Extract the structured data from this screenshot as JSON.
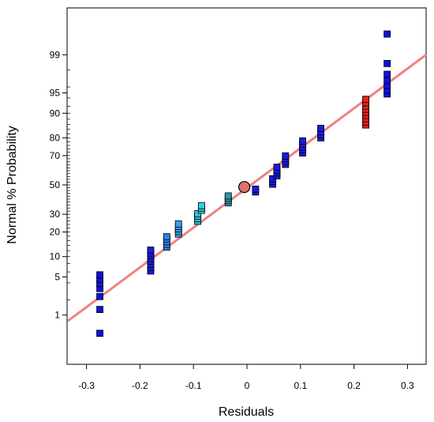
{
  "chart_data": {
    "type": "scatter",
    "xlabel": "Residuals",
    "ylabel": "Normal % Probability",
    "xlim": [
      -0.335,
      0.335
    ],
    "y_scale": "normal-probability",
    "grid": false,
    "legend": "none",
    "x_ticks": [
      {
        "value": -0.3,
        "label": "-0.3"
      },
      {
        "value": -0.2,
        "label": "-0.2"
      },
      {
        "value": -0.1,
        "label": "-0.1"
      },
      {
        "value": 0,
        "label": "0"
      },
      {
        "value": 0.1,
        "label": "0.1"
      },
      {
        "value": 0.2,
        "label": "0.2"
      },
      {
        "value": 0.3,
        "label": "0.3"
      }
    ],
    "y_ticks": [
      {
        "value": 1,
        "label": "1"
      },
      {
        "value": 5,
        "label": "5"
      },
      {
        "value": 10,
        "label": "10"
      },
      {
        "value": 20,
        "label": "20"
      },
      {
        "value": 30,
        "label": "30"
      },
      {
        "value": 50,
        "label": "50"
      },
      {
        "value": 70,
        "label": "70"
      },
      {
        "value": 80,
        "label": "80"
      },
      {
        "value": 90,
        "label": "90"
      },
      {
        "value": 95,
        "label": "95"
      },
      {
        "value": 99,
        "label": "99"
      }
    ],
    "reference_line": {
      "color": "#f08080",
      "from": {
        "x": -0.335,
        "y": 0.75
      },
      "to": {
        "x": 0.335,
        "y": 99.0
      }
    },
    "center_marker": {
      "x": -0.005,
      "y": 48.5,
      "color": "#e07070"
    },
    "points": [
      {
        "x": -0.275,
        "y": 0.4,
        "color": "#1010e0"
      },
      {
        "x": -0.275,
        "y": 1.3,
        "color": "#1010e0"
      },
      {
        "x": -0.275,
        "y": 2.3,
        "color": "#1010e0"
      },
      {
        "x": -0.275,
        "y": 3.2,
        "color": "#1010e0"
      },
      {
        "x": -0.275,
        "y": 3.9,
        "color": "#1010e0"
      },
      {
        "x": -0.275,
        "y": 4.6,
        "color": "#1010e0"
      },
      {
        "x": -0.275,
        "y": 5.4,
        "color": "#1010e0"
      },
      {
        "x": -0.18,
        "y": 6.2,
        "color": "#1a1ae0"
      },
      {
        "x": -0.18,
        "y": 7.0,
        "color": "#1a1ae0"
      },
      {
        "x": -0.18,
        "y": 7.8,
        "color": "#1a1ae0"
      },
      {
        "x": -0.18,
        "y": 8.6,
        "color": "#1a1ae0"
      },
      {
        "x": -0.18,
        "y": 9.4,
        "color": "#1a1ae0"
      },
      {
        "x": -0.18,
        "y": 10.3,
        "color": "#1a1ae0"
      },
      {
        "x": -0.18,
        "y": 11.2,
        "color": "#1a1ae0"
      },
      {
        "x": -0.18,
        "y": 12.2,
        "color": "#1a1ae0"
      },
      {
        "x": -0.15,
        "y": 13.3,
        "color": "#2a80e8"
      },
      {
        "x": -0.15,
        "y": 14.4,
        "color": "#2a80e8"
      },
      {
        "x": -0.15,
        "y": 15.5,
        "color": "#2a80e8"
      },
      {
        "x": -0.15,
        "y": 16.6,
        "color": "#2a80e8"
      },
      {
        "x": -0.15,
        "y": 17.7,
        "color": "#2a80e8"
      },
      {
        "x": -0.128,
        "y": 19.0,
        "color": "#3aa0e8"
      },
      {
        "x": -0.128,
        "y": 20.3,
        "color": "#3aa0e8"
      },
      {
        "x": -0.128,
        "y": 21.6,
        "color": "#3aa0e8"
      },
      {
        "x": -0.128,
        "y": 22.9,
        "color": "#3aa0e8"
      },
      {
        "x": -0.128,
        "y": 24.3,
        "color": "#3aa0e8"
      },
      {
        "x": -0.092,
        "y": 25.8,
        "color": "#30c0d8"
      },
      {
        "x": -0.092,
        "y": 27.3,
        "color": "#30c0d8"
      },
      {
        "x": -0.092,
        "y": 28.8,
        "color": "#30c0d8"
      },
      {
        "x": -0.092,
        "y": 30.4,
        "color": "#30c0d8"
      },
      {
        "x": -0.085,
        "y": 32.5,
        "color": "#30d0e0"
      },
      {
        "x": -0.085,
        "y": 34.0,
        "color": "#30d0e0"
      },
      {
        "x": -0.085,
        "y": 35.6,
        "color": "#30d0e0"
      },
      {
        "x": -0.035,
        "y": 37.5,
        "color": "#2a9aa8"
      },
      {
        "x": -0.035,
        "y": 39.0,
        "color": "#2a9aa8"
      },
      {
        "x": -0.035,
        "y": 40.6,
        "color": "#2a9aa8"
      },
      {
        "x": -0.035,
        "y": 42.2,
        "color": "#2a9aa8"
      },
      {
        "x": 0.016,
        "y": 45.0,
        "color": "#1a1ae0"
      },
      {
        "x": 0.016,
        "y": 47.0,
        "color": "#1a1ae0"
      },
      {
        "x": 0.048,
        "y": 50.5,
        "color": "#1a1ae0"
      },
      {
        "x": 0.048,
        "y": 52.5,
        "color": "#1a1ae0"
      },
      {
        "x": 0.048,
        "y": 54.4,
        "color": "#1a1ae0"
      },
      {
        "x": 0.056,
        "y": 56.5,
        "color": "#1a1ae0"
      },
      {
        "x": 0.056,
        "y": 58.5,
        "color": "#1a1ae0"
      },
      {
        "x": 0.056,
        "y": 60.5,
        "color": "#1a1ae0"
      },
      {
        "x": 0.056,
        "y": 62.4,
        "color": "#1a1ae0"
      },
      {
        "x": 0.072,
        "y": 64.3,
        "color": "#1a1ae0"
      },
      {
        "x": 0.072,
        "y": 66.2,
        "color": "#1a1ae0"
      },
      {
        "x": 0.072,
        "y": 68.0,
        "color": "#1a1ae0"
      },
      {
        "x": 0.072,
        "y": 69.8,
        "color": "#1a1ae0"
      },
      {
        "x": 0.104,
        "y": 71.6,
        "color": "#1a1ae0"
      },
      {
        "x": 0.104,
        "y": 73.4,
        "color": "#1a1ae0"
      },
      {
        "x": 0.104,
        "y": 75.1,
        "color": "#1a1ae0"
      },
      {
        "x": 0.104,
        "y": 76.8,
        "color": "#1a1ae0"
      },
      {
        "x": 0.104,
        "y": 78.4,
        "color": "#1a1ae0"
      },
      {
        "x": 0.138,
        "y": 80.0,
        "color": "#1a1ae0"
      },
      {
        "x": 0.138,
        "y": 81.5,
        "color": "#1a1ae0"
      },
      {
        "x": 0.138,
        "y": 83.0,
        "color": "#1a1ae0"
      },
      {
        "x": 0.138,
        "y": 84.4,
        "color": "#1a1ae0"
      },
      {
        "x": 0.222,
        "y": 85.8,
        "color": "#e82020"
      },
      {
        "x": 0.222,
        "y": 87.0,
        "color": "#e82020"
      },
      {
        "x": 0.222,
        "y": 88.2,
        "color": "#e82020"
      },
      {
        "x": 0.222,
        "y": 89.3,
        "color": "#e82020"
      },
      {
        "x": 0.222,
        "y": 90.3,
        "color": "#e82020"
      },
      {
        "x": 0.222,
        "y": 91.2,
        "color": "#e82020"
      },
      {
        "x": 0.222,
        "y": 92.1,
        "color": "#e82020"
      },
      {
        "x": 0.222,
        "y": 92.9,
        "color": "#e82020"
      },
      {
        "x": 0.222,
        "y": 93.7,
        "color": "#e82020"
      },
      {
        "x": 0.262,
        "y": 94.8,
        "color": "#1010e0"
      },
      {
        "x": 0.262,
        "y": 95.5,
        "color": "#1010e0"
      },
      {
        "x": 0.262,
        "y": 96.2,
        "color": "#1010e0"
      },
      {
        "x": 0.262,
        "y": 96.9,
        "color": "#1010e0"
      },
      {
        "x": 0.262,
        "y": 97.6,
        "color": "#1010e0"
      },
      {
        "x": 0.262,
        "y": 98.5,
        "color": "#1010e0"
      },
      {
        "x": 0.262,
        "y": 99.65,
        "color": "#1010e0"
      }
    ]
  }
}
